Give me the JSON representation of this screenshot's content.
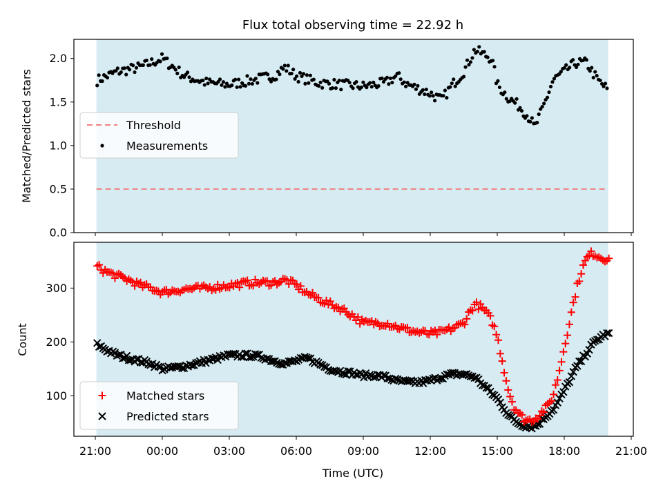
{
  "figure": {
    "title": "Flux total observing time = 22.92 h",
    "xlabel": "Time (UTC)",
    "x_tick_labels": [
      "21:00",
      "00:00",
      "03:00",
      "06:00",
      "09:00",
      "12:00",
      "15:00",
      "18:00",
      "21:00"
    ]
  },
  "colors": {
    "observing_band": "#add8e6",
    "threshold": "#f08080",
    "measurements": "#000000",
    "matched": "#ff0000",
    "predicted": "#000000"
  },
  "chart_data": [
    {
      "type": "scatter",
      "ylabel": "Matched/Predicted stars",
      "xlim": [
        "21:00",
        "21:00 (next day)"
      ],
      "ylim": [
        0,
        2.22
      ],
      "y_tick_labels": [
        "0.0",
        "0.5",
        "1.0",
        "1.5",
        "2.0"
      ],
      "grid": false,
      "legend_position": "center-left",
      "legend": [
        "Threshold",
        "Measurements"
      ],
      "observing_window": [
        "21:03",
        "19:58"
      ],
      "threshold": 0.5,
      "series": [
        {
          "name": "Measurements",
          "x": [
            "21:05",
            "22:00",
            "23:00",
            "23:30",
            "00:00",
            "01:00",
            "02:00",
            "03:00",
            "04:00",
            "05:00",
            "05:30",
            "06:00",
            "07:00",
            "08:00",
            "09:00",
            "10:00",
            "10:30",
            "11:00",
            "12:00",
            "12:30",
            "13:00",
            "13:30",
            "14:00",
            "14:45",
            "15:00",
            "15:30",
            "16:00",
            "16:30",
            "16:40",
            "17:00",
            "17:30",
            "18:00",
            "18:30",
            "19:00",
            "19:30",
            "19:55"
          ],
          "y": [
            1.75,
            1.85,
            1.9,
            1.95,
            2.0,
            1.8,
            1.72,
            1.7,
            1.75,
            1.8,
            1.9,
            1.8,
            1.72,
            1.7,
            1.68,
            1.72,
            1.8,
            1.7,
            1.6,
            1.52,
            1.7,
            1.85,
            2.1,
            2.0,
            1.7,
            1.55,
            1.45,
            1.3,
            1.2,
            1.4,
            1.75,
            1.85,
            1.95,
            1.95,
            1.75,
            1.65
          ]
        }
      ]
    },
    {
      "type": "scatter",
      "ylabel": "Count",
      "ylim": [
        25,
        385
      ],
      "y_tick_labels": [
        "100",
        "200",
        "300"
      ],
      "grid": false,
      "legend_position": "lower-left",
      "legend": [
        "Matched stars",
        "Predicted stars"
      ],
      "series": [
        {
          "name": "Matched stars",
          "x": [
            "21:05",
            "21:30",
            "22:00",
            "22:30",
            "23:00",
            "23:30",
            "00:00",
            "00:30",
            "01:00",
            "02:00",
            "03:00",
            "04:00",
            "05:00",
            "05:30",
            "06:00",
            "06:30",
            "07:00",
            "07:30",
            "08:00",
            "08:30",
            "09:00",
            "10:00",
            "10:30",
            "11:00",
            "11:30",
            "12:00",
            "12:30",
            "13:00",
            "13:30",
            "13:45",
            "14:00",
            "14:15",
            "14:30",
            "14:45",
            "15:00",
            "15:15",
            "15:30",
            "15:45",
            "16:00",
            "16:15",
            "16:30",
            "16:45",
            "17:00",
            "17:15",
            "17:30",
            "17:45",
            "18:00",
            "18:15",
            "18:30",
            "18:45",
            "19:00",
            "19:15",
            "19:30",
            "19:45",
            "20:00"
          ],
          "y": [
            340,
            330,
            322,
            315,
            305,
            300,
            292,
            295,
            298,
            300,
            305,
            310,
            310,
            315,
            305,
            290,
            280,
            270,
            262,
            250,
            235,
            235,
            228,
            222,
            218,
            215,
            218,
            225,
            235,
            255,
            270,
            265,
            255,
            240,
            210,
            160,
            110,
            80,
            65,
            55,
            55,
            60,
            70,
            80,
            100,
            140,
            190,
            240,
            290,
            330,
            355,
            365,
            360,
            355,
            355
          ]
        },
        {
          "name": "Predicted stars",
          "x": [
            "21:05",
            "21:30",
            "22:00",
            "22:30",
            "23:00",
            "23:30",
            "00:00",
            "00:30",
            "01:00",
            "01:30",
            "02:00",
            "02:30",
            "03:00",
            "03:30",
            "04:00",
            "04:30",
            "05:00",
            "05:30",
            "06:00",
            "06:30",
            "07:00",
            "07:30",
            "08:00",
            "08:30",
            "09:00",
            "09:30",
            "10:00",
            "10:30",
            "11:00",
            "11:30",
            "12:00",
            "12:30",
            "13:00",
            "13:30",
            "14:00",
            "14:15",
            "14:30",
            "14:45",
            "15:00",
            "15:15",
            "15:30",
            "15:45",
            "16:00",
            "16:15",
            "16:30",
            "16:45",
            "17:00",
            "17:15",
            "17:30",
            "17:45",
            "18:00",
            "18:15",
            "18:30",
            "18:45",
            "19:00",
            "19:15",
            "19:30",
            "19:45",
            "20:00"
          ],
          "y": [
            195,
            185,
            175,
            170,
            165,
            160,
            150,
            152,
            155,
            160,
            165,
            170,
            175,
            175,
            175,
            172,
            165,
            160,
            165,
            170,
            160,
            150,
            145,
            142,
            138,
            138,
            135,
            128,
            125,
            125,
            128,
            135,
            140,
            140,
            135,
            125,
            115,
            105,
            95,
            80,
            65,
            55,
            48,
            45,
            42,
            45,
            55,
            65,
            75,
            90,
            110,
            130,
            150,
            165,
            180,
            195,
            205,
            212,
            215
          ]
        }
      ]
    }
  ]
}
